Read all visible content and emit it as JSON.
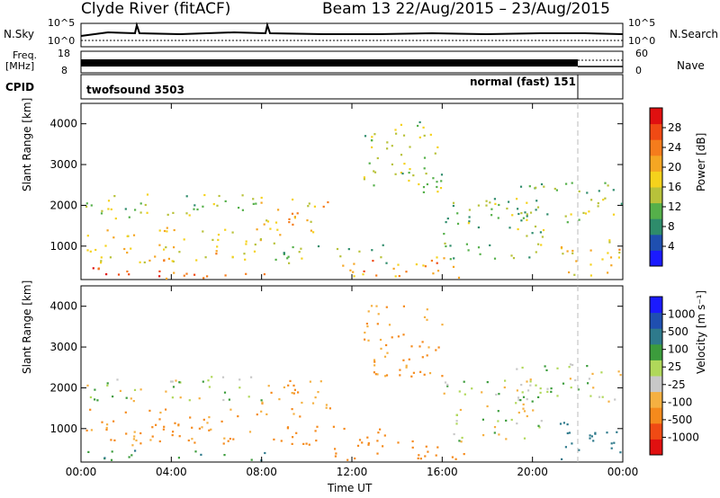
{
  "header": {
    "title": "Clyde River (fitACF)",
    "beam_info": "Beam 13  22/Aug/2015 – 23/Aug/2015"
  },
  "strips": {
    "nsky_label": "N.Sky",
    "nsearch_label": "N.Search",
    "noise_ticks": [
      "10^5",
      "10^0"
    ],
    "freq_label": "Freq.",
    "freq_unit": "[MHz]",
    "freq_ticks": [
      "18",
      "8"
    ],
    "nave_label": "Nave",
    "nave_ticks": [
      "60",
      "0"
    ],
    "cpid_label": "CPID",
    "cpid_left": "twofsound 3503",
    "cpid_right": "normal (fast) 151"
  },
  "colors": {
    "power_scale": [
      "#1a1aff",
      "#1f4fb0",
      "#2e8c6b",
      "#55b04a",
      "#b8c23a",
      "#f5d21c",
      "#f5a623",
      "#f57c1c",
      "#f04a14",
      "#e01010"
    ],
    "velocity_scale": [
      "#e01010",
      "#f04a14",
      "#f58a1c",
      "#f5b041",
      "#c8c8c8",
      "#b0d85a",
      "#3c9c3c",
      "#2e7a8c",
      "#1f4fb0",
      "#1a1aff"
    ]
  },
  "chart_data": [
    {
      "type": "heatmap",
      "panel": "power",
      "xlabel": "",
      "ylabel": "Slant Range [km]",
      "x_ticks": [
        "00:00",
        "04:00",
        "08:00",
        "12:00",
        "16:00",
        "20:00",
        "00:00"
      ],
      "y_ticks": [
        1000,
        2000,
        3000,
        4000
      ],
      "ylim": [
        180,
        4500
      ],
      "xlim_hours": [
        0,
        24
      ],
      "colorbar_label": "Power [dB]",
      "colorbar_ticks": [
        4,
        8,
        12,
        16,
        20,
        24,
        28
      ],
      "bands": [
        {
          "t0": 0.1,
          "t1": 8.2,
          "r0": 200,
          "r1": 500,
          "value": 26
        },
        {
          "t0": 0.2,
          "t1": 8.0,
          "r0": 600,
          "r1": 1500,
          "value": 18
        },
        {
          "t0": 0.2,
          "t1": 8.0,
          "r0": 1700,
          "r1": 2300,
          "value": 14
        },
        {
          "t0": 7.9,
          "t1": 11.0,
          "r0": 1300,
          "r1": 2300,
          "value": 20
        },
        {
          "t0": 8.5,
          "t1": 13.5,
          "r0": 600,
          "r1": 1100,
          "value": 12
        },
        {
          "t0": 11.0,
          "t1": 17.0,
          "r0": 250,
          "r1": 750,
          "value": 22
        },
        {
          "t0": 12.5,
          "t1": 16.0,
          "r0": 2300,
          "r1": 4100,
          "value": 14
        },
        {
          "t0": 16.0,
          "t1": 20.5,
          "r0": 700,
          "r1": 2200,
          "value": 12
        },
        {
          "t0": 19.2,
          "t1": 24.0,
          "r0": 1600,
          "r1": 2600,
          "value": 13
        },
        {
          "t0": 21.2,
          "t1": 24.0,
          "r0": 200,
          "r1": 1200,
          "value": 18
        }
      ]
    },
    {
      "type": "heatmap",
      "panel": "velocity",
      "xlabel": "Time UT",
      "ylabel": "Slant Range [km]",
      "x_ticks": [
        "00:00",
        "04:00",
        "08:00",
        "12:00",
        "16:00",
        "20:00",
        "00:00"
      ],
      "y_ticks": [
        1000,
        2000,
        3000,
        4000
      ],
      "ylim": [
        180,
        4500
      ],
      "xlim_hours": [
        0,
        24
      ],
      "colorbar_label": "Velocity [m s⁻¹]",
      "colorbar_ticks": [
        1000,
        500,
        100,
        25,
        -25,
        -100,
        -500,
        -1000
      ],
      "bands": [
        {
          "t0": 0.1,
          "t1": 8.2,
          "r0": 200,
          "r1": 500,
          "value": 100
        },
        {
          "t0": 0.2,
          "t1": 8.0,
          "r0": 600,
          "r1": 1500,
          "value": -100
        },
        {
          "t0": 0.2,
          "t1": 8.0,
          "r0": 1700,
          "r1": 2300,
          "value": 0
        },
        {
          "t0": 7.9,
          "t1": 11.0,
          "r0": 1300,
          "r1": 2300,
          "value": -100
        },
        {
          "t0": 8.5,
          "t1": 13.5,
          "r0": 600,
          "r1": 1100,
          "value": -300
        },
        {
          "t0": 11.0,
          "t1": 17.0,
          "r0": 250,
          "r1": 750,
          "value": -300
        },
        {
          "t0": 12.5,
          "t1": 16.0,
          "r0": 2300,
          "r1": 4100,
          "value": -100
        },
        {
          "t0": 16.0,
          "t1": 20.5,
          "r0": 700,
          "r1": 2200,
          "value": 0
        },
        {
          "t0": 19.2,
          "t1": 24.0,
          "r0": 1600,
          "r1": 2600,
          "value": 0
        },
        {
          "t0": 21.2,
          "t1": 24.0,
          "r0": 200,
          "r1": 1200,
          "value": 200
        }
      ]
    }
  ]
}
